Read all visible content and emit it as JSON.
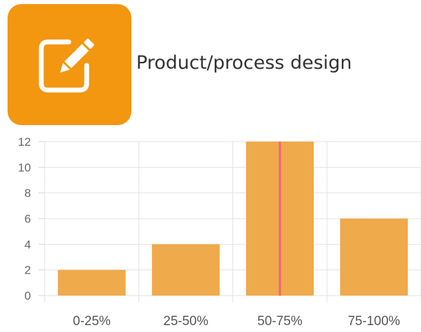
{
  "header": {
    "title": "Product/process design",
    "icon": "edit-square-icon",
    "icon_bg_color": "#F39610",
    "icon_fg_color": "#FFFFFF"
  },
  "chart_data": {
    "type": "bar",
    "categories": [
      "0-25%",
      "25-50%",
      "50-75%",
      "75-100%"
    ],
    "values": [
      2,
      4,
      12,
      6
    ],
    "title": "",
    "xlabel": "",
    "ylabel": "",
    "ylim": [
      0,
      12
    ],
    "yticks": [
      0,
      2,
      4,
      6,
      8,
      10,
      12
    ],
    "grid": true,
    "legend": "none",
    "bar_color": "#EFAA4C",
    "marker": {
      "category": "50-75%",
      "position": "center",
      "color": "#F7607A"
    }
  }
}
